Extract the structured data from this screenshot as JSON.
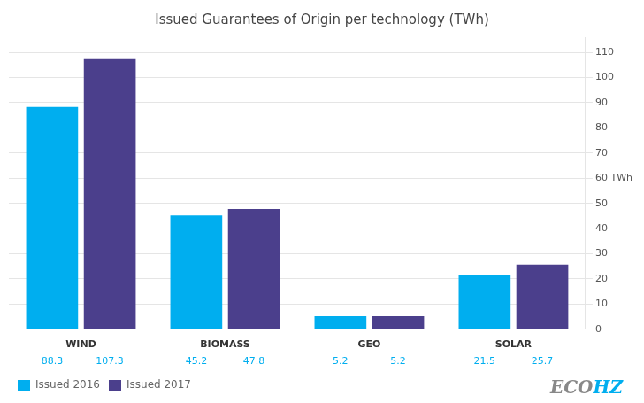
{
  "chart_data": {
    "type": "bar",
    "title": "Issued Guarantees of Origin per technology (TWh)",
    "categories": [
      "WIND",
      "BIOMASS",
      "GEO",
      "SOLAR"
    ],
    "series": [
      {
        "name": "Issued 2016",
        "color": "#00AEEF",
        "values": [
          88.3,
          45.2,
          5.2,
          21.5
        ]
      },
      {
        "name": "Issued 2017",
        "color": "#4B3F8C",
        "values": [
          107.3,
          47.8,
          5.2,
          25.7
        ]
      }
    ],
    "ylim": [
      0,
      116
    ],
    "yticks": [
      0,
      10,
      20,
      30,
      40,
      50,
      {
        "value": 60,
        "label": "60 TWh"
      },
      70,
      80,
      90,
      100,
      110
    ],
    "grid": true,
    "legend": "lower left",
    "data_labels": true,
    "annotations": [
      "ECO",
      "HZ"
    ]
  }
}
